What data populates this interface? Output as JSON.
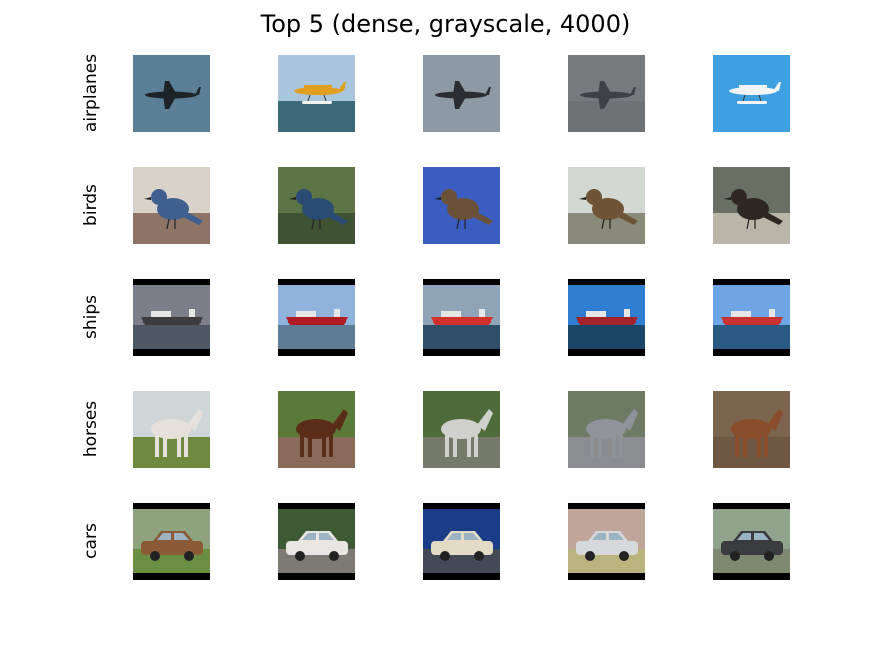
{
  "title": "Top 5 (dense, grayscale, 4000)",
  "rows": [
    {
      "label": "airplanes",
      "images": [
        {
          "subject": "airplane",
          "sky": "#5a7f96",
          "ground": "#5a7f96",
          "obj": "#1e2328",
          "bars": false
        },
        {
          "subject": "seaplane",
          "sky": "#a9c6dd",
          "ground": "#3c6a78",
          "obj": "#e0a01d",
          "bars": false
        },
        {
          "subject": "airplane",
          "sky": "#8d9aa3",
          "ground": "#8d9aa3",
          "obj": "#2a2e33",
          "bars": false
        },
        {
          "subject": "airplane",
          "sky": "#777b7d",
          "ground": "#6e7274",
          "obj": "#3c4246",
          "bars": false
        },
        {
          "subject": "seaplane",
          "sky": "#3ea0e0",
          "ground": "#3ea0e0",
          "obj": "#f2f4f6",
          "bars": false
        }
      ]
    },
    {
      "label": "birds",
      "images": [
        {
          "subject": "bird",
          "sky": "#d8d2c8",
          "ground": "#8e7466",
          "obj": "#3f5f8e",
          "bars": false
        },
        {
          "subject": "bird",
          "sky": "#5c7446",
          "ground": "#3f5233",
          "obj": "#2a4c74",
          "bars": false
        },
        {
          "subject": "bird",
          "sky": "#3b5dc1",
          "ground": "#3b5dc1",
          "obj": "#6b5138",
          "bars": false
        },
        {
          "subject": "bird",
          "sky": "#d3d7d2",
          "ground": "#8a8a7a",
          "obj": "#6d5436",
          "bars": false
        },
        {
          "subject": "bird",
          "sky": "#6a6f64",
          "ground": "#b9b6a8",
          "obj": "#2f2822",
          "bars": false
        }
      ]
    },
    {
      "label": "ships",
      "images": [
        {
          "subject": "ship",
          "sky": "#7c7f8a",
          "ground": "#4e5864",
          "obj": "#3d3b3e",
          "bars": true
        },
        {
          "subject": "ship",
          "sky": "#8fb3da",
          "ground": "#5d7c96",
          "obj": "#b01c22",
          "bars": true
        },
        {
          "subject": "ship",
          "sky": "#90a4b7",
          "ground": "#2f4e69",
          "obj": "#d2312b",
          "bars": true
        },
        {
          "subject": "ship",
          "sky": "#2f7ed1",
          "ground": "#1a4668",
          "obj": "#a4242a",
          "bars": true
        },
        {
          "subject": "ship",
          "sky": "#6ea5e4",
          "ground": "#295a83",
          "obj": "#c83332",
          "bars": true
        }
      ]
    },
    {
      "label": "horses",
      "images": [
        {
          "subject": "horse",
          "sky": "#cfd6d8",
          "ground": "#6f8a3e",
          "obj": "#e5e1da",
          "bars": false
        },
        {
          "subject": "horse",
          "sky": "#5a7a3a",
          "ground": "#8b6a5b",
          "obj": "#5a2d18",
          "bars": false
        },
        {
          "subject": "horse",
          "sky": "#4f6a3b",
          "ground": "#767a6a",
          "obj": "#d0d0cc",
          "bars": false
        },
        {
          "subject": "horse",
          "sky": "#6d7a64",
          "ground": "#8a8c90",
          "obj": "#8e949a",
          "bars": false
        },
        {
          "subject": "horse",
          "sky": "#7b654e",
          "ground": "#6e5844",
          "obj": "#8a4e2c",
          "bars": false
        }
      ]
    },
    {
      "label": "cars",
      "images": [
        {
          "subject": "car",
          "sky": "#8fa37e",
          "ground": "#6c8e43",
          "obj": "#8a5b36",
          "bars": true
        },
        {
          "subject": "car",
          "sky": "#3d5a34",
          "ground": "#7c7a72",
          "obj": "#e8e6e2",
          "bars": true
        },
        {
          "subject": "car",
          "sky": "#1b3c86",
          "ground": "#444a55",
          "obj": "#e4dbc6",
          "bars": true
        },
        {
          "subject": "car",
          "sky": "#c0a69a",
          "ground": "#b9b37d",
          "obj": "#d7d8da",
          "bars": true
        },
        {
          "subject": "car",
          "sky": "#8fa48a",
          "ground": "#7d8a70",
          "obj": "#3a3c40",
          "bars": true
        }
      ]
    }
  ]
}
